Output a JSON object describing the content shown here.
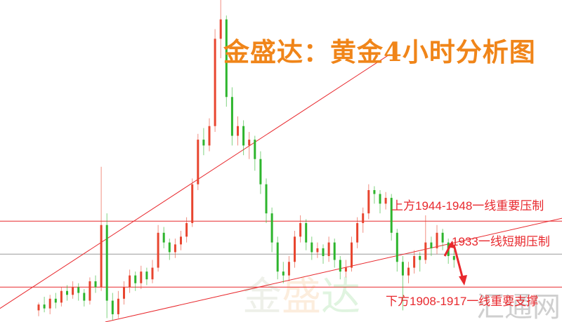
{
  "chart_data": {
    "type": "candlestick",
    "title": "金盛达：黄金4小时分析图",
    "xlabel": "",
    "ylabel": "",
    "ylim": [
      1894,
      2060
    ],
    "grid": false,
    "colors": {
      "up": "#e8452f",
      "down": "#2db52d",
      "lines": "#e8282d",
      "title": "#f08519",
      "price_line": "#9a9a9a"
    },
    "candles": [
      [
        1900,
        1904,
        1897,
        1903
      ],
      [
        1903,
        1907,
        1899,
        1901
      ],
      [
        1901,
        1908,
        1898,
        1906
      ],
      [
        1906,
        1909,
        1901,
        1904
      ],
      [
        1904,
        1912,
        1902,
        1910
      ],
      [
        1910,
        1913,
        1905,
        1908
      ],
      [
        1908,
        1915,
        1906,
        1912
      ],
      [
        1912,
        1914,
        1905,
        1909
      ],
      [
        1909,
        1911,
        1902,
        1905
      ],
      [
        1905,
        1917,
        1903,
        1915
      ],
      [
        1915,
        1918,
        1909,
        1912
      ],
      [
        1912,
        1974,
        1910,
        1944
      ],
      [
        1944,
        1950,
        1896,
        1905
      ],
      [
        1905,
        1909,
        1895,
        1898
      ],
      [
        1898,
        1910,
        1896,
        1906
      ],
      [
        1906,
        1915,
        1903,
        1912
      ],
      [
        1912,
        1921,
        1909,
        1918
      ],
      [
        1918,
        1920,
        1910,
        1914
      ],
      [
        1914,
        1923,
        1911,
        1920
      ],
      [
        1920,
        1922,
        1913,
        1916
      ],
      [
        1916,
        1926,
        1914,
        1922
      ],
      [
        1922,
        1944,
        1920,
        1940
      ],
      [
        1940,
        1943,
        1932,
        1935
      ],
      [
        1935,
        1937,
        1926,
        1930
      ],
      [
        1930,
        1937,
        1927,
        1934
      ],
      [
        1934,
        1941,
        1931,
        1938
      ],
      [
        1938,
        1948,
        1935,
        1945
      ],
      [
        1945,
        1968,
        1943,
        1965
      ],
      [
        1965,
        1991,
        1962,
        1988
      ],
      [
        1988,
        1994,
        1980,
        1985
      ],
      [
        1985,
        1999,
        1982,
        1995
      ],
      [
        1995,
        2045,
        1992,
        2040
      ],
      [
        2040,
        2060,
        2030,
        2050
      ],
      [
        2050,
        2052,
        2005,
        2010
      ],
      [
        2010,
        2015,
        1985,
        1990
      ],
      [
        1990,
        2000,
        1985,
        1995
      ],
      [
        1995,
        1998,
        1980,
        1985
      ],
      [
        1985,
        1992,
        1978,
        1988
      ],
      [
        1988,
        1990,
        1972,
        1978
      ],
      [
        1978,
        1982,
        1960,
        1965
      ],
      [
        1965,
        1968,
        1945,
        1950
      ],
      [
        1950,
        1953,
        1930,
        1935
      ],
      [
        1935,
        1938,
        1916,
        1920
      ],
      [
        1920,
        1925,
        1914,
        1918
      ],
      [
        1918,
        1928,
        1915,
        1925
      ],
      [
        1925,
        1941,
        1922,
        1938
      ],
      [
        1938,
        1949,
        1935,
        1945
      ],
      [
        1945,
        1947,
        1931,
        1935
      ],
      [
        1935,
        1938,
        1926,
        1930
      ],
      [
        1930,
        1935,
        1927,
        1932
      ],
      [
        1932,
        1934,
        1924,
        1928
      ],
      [
        1928,
        1938,
        1925,
        1935
      ],
      [
        1935,
        1937,
        1922,
        1926
      ],
      [
        1926,
        1928,
        1916,
        1920
      ],
      [
        1920,
        1926,
        1917,
        1922
      ],
      [
        1922,
        1938,
        1920,
        1935
      ],
      [
        1935,
        1948,
        1932,
        1945
      ],
      [
        1945,
        1953,
        1940,
        1950
      ],
      [
        1950,
        1965,
        1947,
        1962
      ],
      [
        1962,
        1964,
        1955,
        1960
      ],
      [
        1960,
        1962,
        1950,
        1955
      ],
      [
        1955,
        1961,
        1952,
        1958
      ],
      [
        1958,
        1960,
        1936,
        1940
      ],
      [
        1940,
        1942,
        1920,
        1925
      ],
      [
        1925,
        1928,
        1900,
        1918
      ],
      [
        1918,
        1925,
        1914,
        1922
      ],
      [
        1922,
        1931,
        1919,
        1928
      ],
      [
        1928,
        1930,
        1920,
        1926
      ],
      [
        1926,
        1949,
        1924,
        1935
      ],
      [
        1935,
        1938,
        1928,
        1932
      ],
      [
        1932,
        1944,
        1929,
        1940
      ],
      [
        1940,
        1942,
        1931,
        1935
      ],
      [
        1935,
        1937,
        1924,
        1928
      ],
      [
        1928,
        1931,
        1922,
        1926
      ]
    ],
    "horizontal_lines": [
      {
        "price": 1946,
        "kind": "resistance"
      },
      {
        "price": 1929,
        "kind": "current-price"
      },
      {
        "price": 1912,
        "kind": "support"
      }
    ],
    "trendlines": [
      {
        "from": [
          -6.8,
          1901
        ],
        "to": [
          61.7,
          2032
        ]
      },
      {
        "from": [
          11.7,
          1894
        ],
        "to": [
          92,
          1947.5
        ]
      }
    ],
    "annotations": {
      "upper": "上方1944-1948一线重要压制",
      "middle": "1933一线短期压制",
      "lower": "下方1908-1917一线重要支撑"
    }
  },
  "watermarks": {
    "brand": "金盛达",
    "site": "汇通网"
  }
}
